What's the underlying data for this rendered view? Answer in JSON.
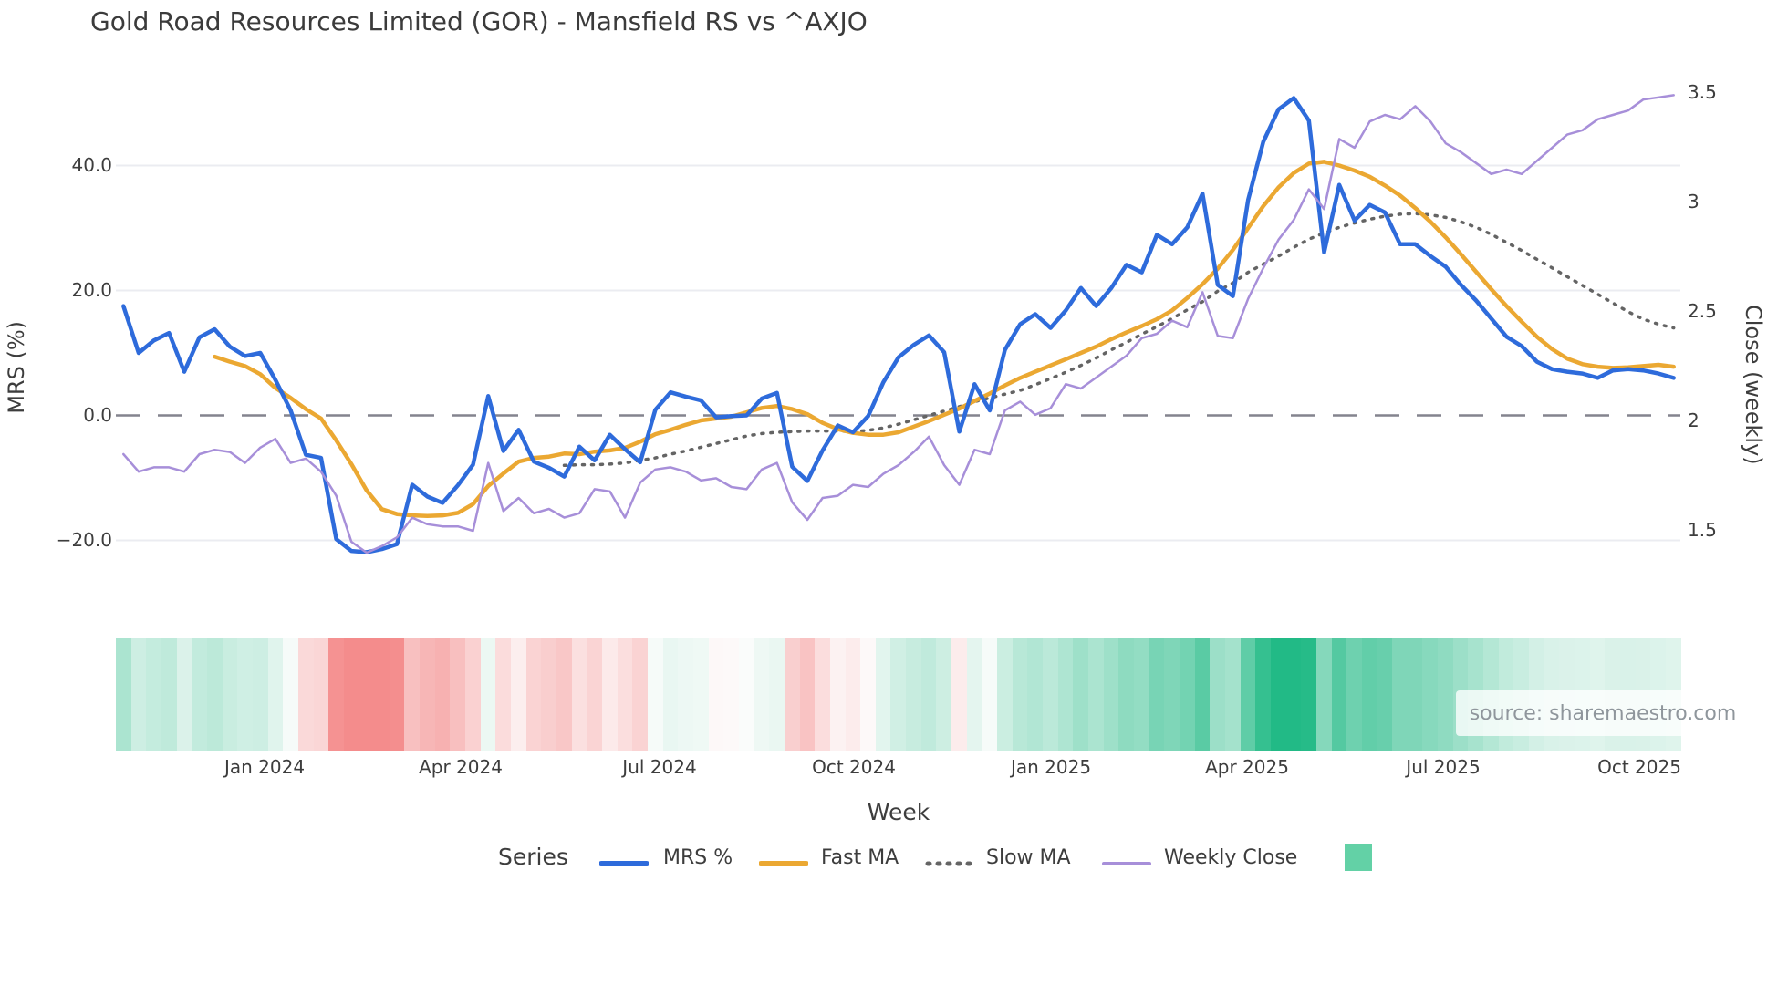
{
  "title": "Gold Road Resources Limited (GOR) - Mansfield RS vs ^AXJO",
  "source": {
    "text": "source: sharemaestro.com"
  },
  "axes": {
    "x_label": "Week",
    "left_label": "MRS (%)",
    "right_label": "Close (weekly)",
    "left_ticks": [
      {
        "label": "40.0",
        "value": 40
      },
      {
        "label": "20.0",
        "value": 20
      },
      {
        "label": "0.0",
        "value": 0
      },
      {
        "label": "−20.0",
        "value": -20
      }
    ],
    "right_ticks": [
      {
        "label": "3.5",
        "value": 3.5
      },
      {
        "label": "3",
        "value": 3.0
      },
      {
        "label": "2.5",
        "value": 2.5
      },
      {
        "label": "2",
        "value": 2.0
      },
      {
        "label": "1.5",
        "value": 1.5
      }
    ],
    "x_ticks": [
      {
        "label": "Jan 2024",
        "week": 9.33
      },
      {
        "label": "Apr 2024",
        "week": 22.26
      },
      {
        "label": "Jul 2024",
        "week": 35.38
      },
      {
        "label": "Oct 2024",
        "week": 48.19
      },
      {
        "label": "Jan 2025",
        "week": 61.13
      },
      {
        "label": "Apr 2025",
        "week": 74.07
      },
      {
        "label": "Jul 2025",
        "week": 87.0
      },
      {
        "label": "Oct 2025",
        "week": 99.94
      }
    ]
  },
  "legend": {
    "series_label": "Series",
    "items": [
      {
        "label": "MRS %",
        "color": "#2e6bdb",
        "style": "solid"
      },
      {
        "label": "Fast MA",
        "color": "#eba832",
        "style": "solid"
      },
      {
        "label": "Slow MA",
        "color": "#646464",
        "style": "dotted"
      },
      {
        "label": "Weekly Close",
        "color": "#a78fd9",
        "style": "solid"
      }
    ],
    "heatmap_swatch_color": "#63d1a6"
  },
  "colors": {
    "grid": "#ebecf1",
    "zero_line": "#84848e",
    "heat_positive": "#22ba86",
    "heat_negative": "#f48c8c",
    "text": "#3d3d3d"
  },
  "chart_data": {
    "type": "line",
    "x_unit": "week_index",
    "n_weeks": 103,
    "date_range": "Nov 2023 - Oct 2025",
    "grid_values": [
      40,
      20,
      -20
    ],
    "zero_line_value": 0,
    "series": [
      {
        "name": "MRS %",
        "axis": "left",
        "color": "#2e6bdb",
        "width": 4.5,
        "dash": "solid",
        "start_week": 0,
        "values": [
          17.5,
          10,
          12,
          13.2,
          7,
          12.5,
          13.8,
          11,
          9.5,
          10,
          5.7,
          0.8,
          -6.3,
          -6.8,
          -19.8,
          -21.7,
          -21.9,
          -21.4,
          -20.6,
          -11.1,
          -13,
          -14,
          -11.2,
          -7.9,
          3.1,
          -5.7,
          -2.3,
          -7.4,
          -8.4,
          -9.8,
          -5,
          -7.2,
          -3.1,
          -5.4,
          -7.5,
          0.9,
          3.7,
          3,
          2.4,
          -0.3,
          -0.1,
          0,
          2.7,
          3.6,
          -8.2,
          -10.5,
          -5.6,
          -1.6,
          -2.7,
          -0.1,
          5.3,
          9.3,
          11.3,
          12.8,
          10.1,
          -2.6,
          5,
          0.8,
          10.5,
          14.6,
          16.2,
          14,
          16.8,
          20.4,
          17.5,
          20.4,
          24.1,
          22.9,
          28.9,
          27.4,
          30.1,
          35.5,
          20.9,
          19.1,
          34.5,
          43.8,
          49,
          50.8,
          47.2,
          26.1,
          36.9,
          31.2,
          33.7,
          32.5,
          27.4,
          27.4,
          25.5,
          23.8,
          20.9,
          18.4,
          15.5,
          12.6,
          11.1,
          8.6,
          7.4,
          7,
          6.7,
          6,
          7.2,
          7.4,
          7.2,
          6.7,
          6
        ]
      },
      {
        "name": "Fast MA",
        "axis": "left",
        "color": "#eba832",
        "width": 4.5,
        "dash": "solid",
        "start_week": 6,
        "values": [
          9.4,
          8.6,
          7.9,
          6.6,
          4.4,
          2.8,
          1.0,
          -0.5,
          -4.0,
          -7.8,
          -12.0,
          -15.0,
          -15.8,
          -16.0,
          -16.1,
          -16.0,
          -15.6,
          -14.2,
          -11.3,
          -9.3,
          -7.4,
          -6.8,
          -6.6,
          -6.1,
          -6.2,
          -5.8,
          -5.6,
          -5.2,
          -4.2,
          -3.0,
          -2.3,
          -1.5,
          -0.8,
          -0.5,
          -0.2,
          0.5,
          1.2,
          1.5,
          1.0,
          0.2,
          -1.2,
          -2.2,
          -2.8,
          -3.1,
          -3.1,
          -2.7,
          -1.8,
          -0.9,
          0.1,
          1.1,
          2.3,
          3.5,
          4.8,
          6.0,
          7.0,
          8.0,
          9.0,
          10.0,
          11.0,
          12.2,
          13.3,
          14.3,
          15.4,
          16.8,
          18.8,
          21.0,
          23.5,
          26.5,
          30.0,
          33.5,
          36.5,
          38.8,
          40.3,
          40.6,
          40.0,
          39.2,
          38.2,
          36.8,
          35.2,
          33.2,
          31.0,
          28.5,
          25.8,
          23.0,
          20.2,
          17.5,
          15.0,
          12.6,
          10.6,
          9.1,
          8.2,
          7.8,
          7.6,
          7.7,
          7.9,
          8.1,
          7.8
        ]
      },
      {
        "name": "Slow MA",
        "axis": "left",
        "color": "#646464",
        "width": 3.5,
        "dash": "dotted",
        "start_week": 29,
        "values": [
          -8.0,
          -7.9,
          -7.9,
          -7.8,
          -7.6,
          -7.2,
          -6.8,
          -6.2,
          -5.7,
          -5.1,
          -4.5,
          -3.9,
          -3.3,
          -2.9,
          -2.7,
          -2.6,
          -2.5,
          -2.5,
          -2.5,
          -2.6,
          -2.4,
          -2.0,
          -1.4,
          -0.7,
          0.0,
          0.7,
          1.4,
          2.2,
          2.8,
          3.4,
          4.0,
          4.9,
          5.9,
          6.9,
          8.0,
          9.2,
          10.5,
          11.7,
          13.0,
          14.2,
          15.5,
          16.9,
          18.2,
          19.9,
          21.2,
          22.9,
          24.2,
          25.5,
          26.9,
          28.2,
          29.2,
          30.1,
          30.8,
          31.4,
          31.9,
          32.2,
          32.3,
          32.1,
          31.7,
          31.0,
          30.1,
          29.0,
          27.7,
          26.4,
          25.0,
          23.6,
          22.2,
          20.8,
          19.4,
          18.0,
          16.6,
          15.4,
          14.6,
          14.0
        ]
      },
      {
        "name": "Weekly Close",
        "axis": "right",
        "color": "#a78fd9",
        "width": 2.5,
        "dash": "solid",
        "start_week": 0,
        "values": [
          1.85,
          1.77,
          1.79,
          1.79,
          1.77,
          1.85,
          1.87,
          1.86,
          1.81,
          1.88,
          1.92,
          1.81,
          1.83,
          1.77,
          1.66,
          1.45,
          1.4,
          1.43,
          1.47,
          1.56,
          1.53,
          1.52,
          1.52,
          1.5,
          1.81,
          1.59,
          1.65,
          1.58,
          1.6,
          1.56,
          1.58,
          1.69,
          1.68,
          1.56,
          1.72,
          1.78,
          1.79,
          1.77,
          1.73,
          1.74,
          1.7,
          1.69,
          1.78,
          1.81,
          1.63,
          1.55,
          1.65,
          1.66,
          1.71,
          1.7,
          1.76,
          1.8,
          1.86,
          1.93,
          1.8,
          1.71,
          1.87,
          1.85,
          2.05,
          2.09,
          2.03,
          2.06,
          2.17,
          2.15,
          2.2,
          2.25,
          2.3,
          2.38,
          2.4,
          2.46,
          2.43,
          2.59,
          2.39,
          2.38,
          2.56,
          2.7,
          2.83,
          2.92,
          3.06,
          2.97,
          3.29,
          3.25,
          3.37,
          3.4,
          3.38,
          3.44,
          3.37,
          3.27,
          3.23,
          3.18,
          3.13,
          3.15,
          3.13,
          3.19,
          3.25,
          3.31,
          3.33,
          3.38,
          3.4,
          3.42,
          3.47,
          3.48,
          3.49
        ]
      }
    ],
    "heatmap": {
      "based_on": "MRS %",
      "pos_color": "#22ba86",
      "neg_color": "#f48c8c",
      "pos_scale_max": 48,
      "neg_scale_max": 21
    }
  }
}
